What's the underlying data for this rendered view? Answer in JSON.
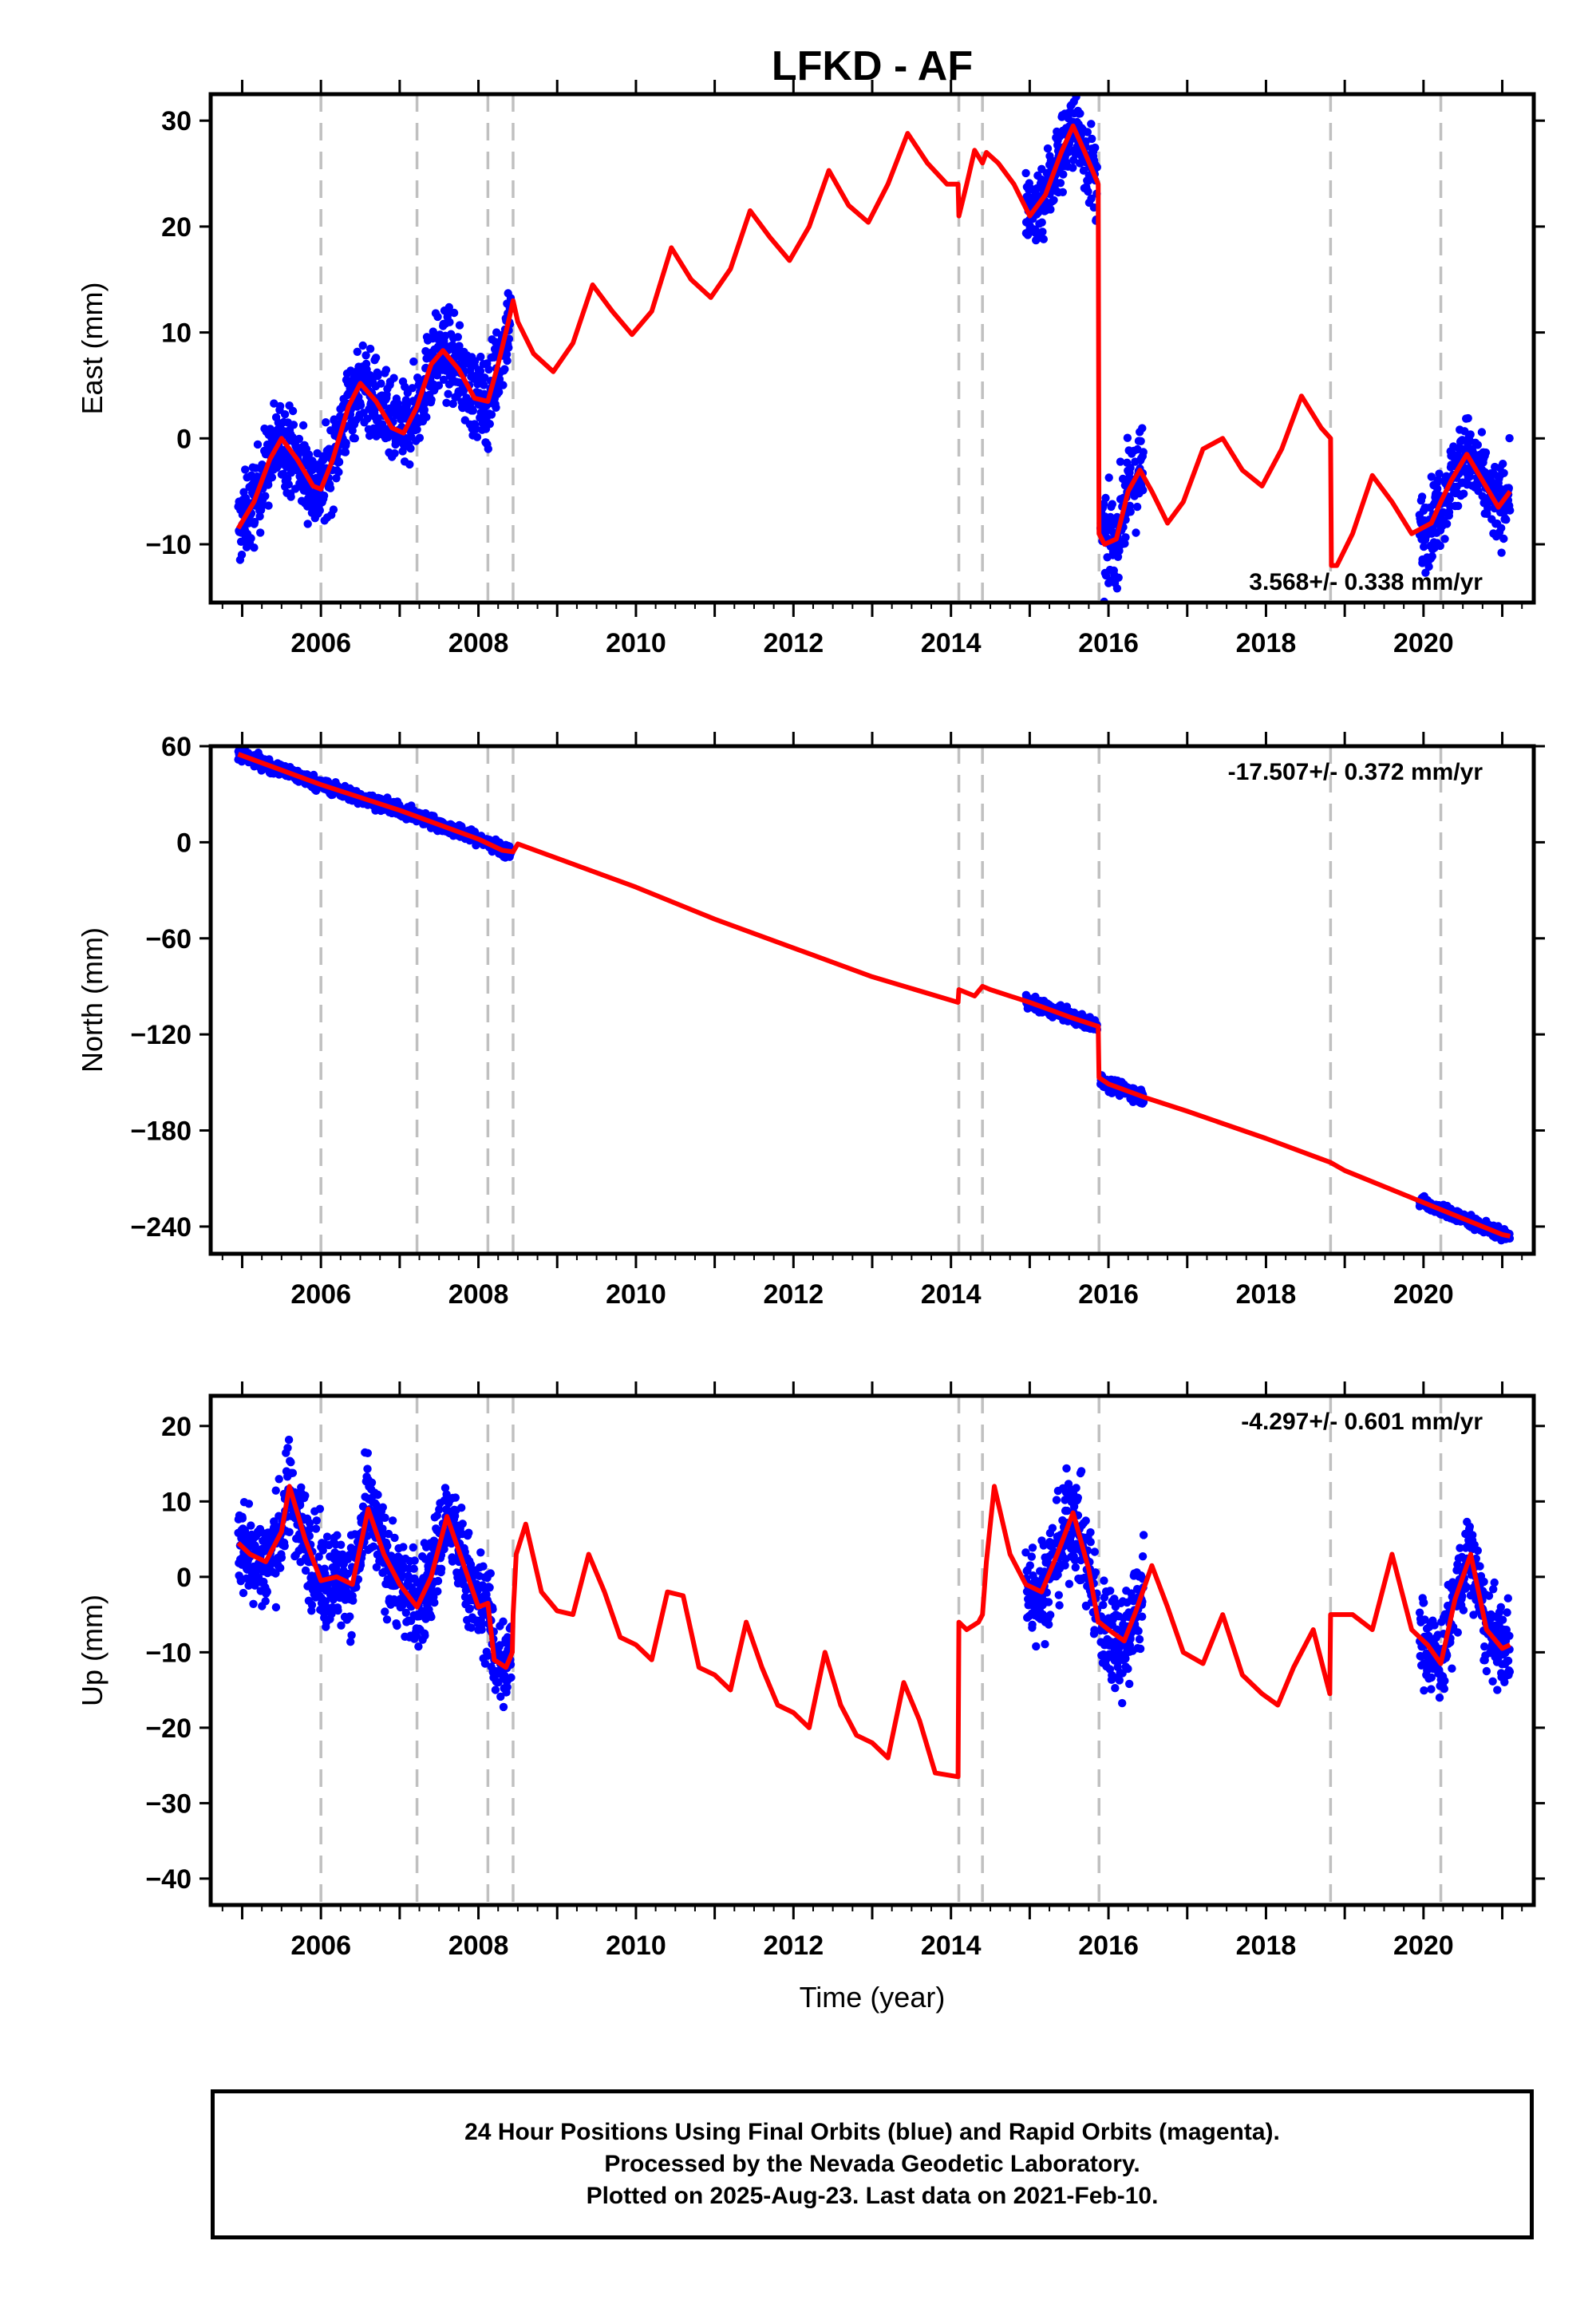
{
  "title": "LFKD - AF",
  "colors": {
    "data": "#0000ff",
    "model": "#ff0000",
    "event_line": "#c0c0c0",
    "frame": "#000000"
  },
  "chart_data": [
    {
      "type": "scatter",
      "name": "east",
      "ylabel": "East (mm)",
      "xlabel": "",
      "rate": "3.568+/- 0.338 mm/yr",
      "xlim": [
        2004.6,
        2021.4
      ],
      "ylim": [
        -15.5,
        32.5
      ],
      "yticks": [
        30,
        20,
        10,
        0,
        -10
      ],
      "ytick_labels": [
        "30",
        "20",
        "10",
        "0",
        "−10"
      ],
      "xticks": [
        2006,
        2008,
        2010,
        2012,
        2014,
        2016,
        2018,
        2020
      ],
      "xtick_labels": [
        "2006",
        "2008",
        "2010",
        "2012",
        "2014",
        "2016",
        "2018",
        "2020"
      ],
      "event_lines": [
        2006.0,
        2007.22,
        2008.12,
        2008.44,
        2014.1,
        2014.4,
        2015.88,
        2018.82,
        2020.22
      ],
      "model_x": [
        2004.95,
        2005.15,
        2005.35,
        2005.5,
        2005.7,
        2005.9,
        2006.0,
        2006.15,
        2006.35,
        2006.5,
        2006.7,
        2006.9,
        2007.05,
        2007.22,
        2007.4,
        2007.55,
        2007.75,
        2007.95,
        2008.12,
        2008.25,
        2008.38,
        2008.44,
        2008.5,
        2008.7,
        2008.95,
        2009.2,
        2009.45,
        2009.7,
        2009.95,
        2010.2,
        2010.45,
        2010.7,
        2010.95,
        2011.2,
        2011.45,
        2011.7,
        2011.95,
        2012.2,
        2012.45,
        2012.7,
        2012.95,
        2013.2,
        2013.45,
        2013.7,
        2013.95,
        2014.09,
        2014.1,
        2014.2,
        2014.3,
        2014.4,
        2014.45,
        2014.6,
        2014.8,
        2015.0,
        2015.2,
        2015.4,
        2015.55,
        2015.7,
        2015.87,
        2015.88,
        2015.95,
        2016.1,
        2016.25,
        2016.4,
        2016.55,
        2016.75,
        2016.95,
        2017.2,
        2017.45,
        2017.7,
        2017.95,
        2018.2,
        2018.45,
        2018.7,
        2018.82,
        2018.83,
        2018.9,
        2019.1,
        2019.35,
        2019.6,
        2019.85,
        2020.1,
        2020.22,
        2020.35,
        2020.55,
        2020.75,
        2020.95,
        2021.1
      ],
      "model_y": [
        -8.5,
        -6,
        -2,
        0,
        -2,
        -4.5,
        -4.8,
        -2,
        3,
        5.2,
        3.5,
        1,
        0.5,
        3,
        7,
        8.3,
        6.5,
        3.8,
        3.5,
        7,
        11,
        13,
        11,
        8,
        6.3,
        9,
        14.5,
        12,
        9.8,
        12,
        18,
        15,
        13.3,
        16,
        21.5,
        19,
        16.8,
        20,
        25.3,
        22,
        20.4,
        24,
        28.8,
        26,
        24,
        24,
        21,
        24,
        27.2,
        26,
        27,
        26,
        24,
        21,
        23,
        27,
        29.5,
        27,
        24,
        -9,
        -10,
        -9.5,
        -5,
        -3,
        -5,
        -8,
        -6,
        -1,
        0,
        -3,
        -4.5,
        -1,
        4,
        1,
        0,
        -12,
        -12,
        -9,
        -3.5,
        -6,
        -9,
        -8,
        -6,
        -4,
        -1.5,
        -4,
        -6.5,
        -5
      ],
      "obs_groups": [
        {
          "x_start": 2004.95,
          "x_end": 2008.42,
          "spread": 2.8
        },
        {
          "x_start": 2014.95,
          "x_end": 2015.86,
          "spread": 2.8
        },
        {
          "x_start": 2015.9,
          "x_end": 2016.45,
          "spread": 3.0
        },
        {
          "x_start": 2019.95,
          "x_end": 2021.1,
          "spread": 2.6
        }
      ]
    },
    {
      "type": "scatter",
      "name": "north",
      "ylabel": "North (mm)",
      "xlabel": "",
      "rate": "-17.507+/- 0.372 mm/yr",
      "xlim": [
        2004.6,
        2021.4
      ],
      "ylim": [
        -257,
        60
      ],
      "yticks": [
        60,
        0,
        -60,
        -120,
        -180,
        -240
      ],
      "ytick_labels": [
        "60",
        "0",
        "−60",
        "−120",
        "−180",
        "−240"
      ],
      "xticks": [
        2006,
        2008,
        2010,
        2012,
        2014,
        2016,
        2018,
        2020
      ],
      "xtick_labels": [
        "2006",
        "2008",
        "2010",
        "2012",
        "2014",
        "2016",
        "2018",
        "2020"
      ],
      "event_lines": [
        2006.0,
        2007.22,
        2008.12,
        2008.44,
        2014.1,
        2014.4,
        2015.88,
        2018.82,
        2020.22
      ],
      "model_x": [
        2004.95,
        2006.0,
        2007.0,
        2008.0,
        2008.3,
        2008.44,
        2008.5,
        2009.0,
        2010.0,
        2011.0,
        2012.0,
        2013.0,
        2014.09,
        2014.1,
        2014.3,
        2014.4,
        2014.5,
        2015.0,
        2015.5,
        2015.87,
        2015.88,
        2016.0,
        2016.5,
        2017.0,
        2018.0,
        2018.82,
        2019.0,
        2020.0,
        2021.0,
        2021.1
      ],
      "model_y": [
        55,
        36,
        20,
        2,
        -5,
        -6,
        -1,
        -10,
        -28,
        -48,
        -66,
        -84,
        -100,
        -92,
        -96,
        -90,
        -92,
        -100,
        -109,
        -115,
        -147,
        -151,
        -160,
        -168,
        -185,
        -200,
        -205,
        -225,
        -245,
        -246
      ],
      "obs_groups": [
        {
          "x_start": 2004.95,
          "x_end": 2008.42,
          "spread": 2.8
        },
        {
          "x_start": 2014.95,
          "x_end": 2015.86,
          "spread": 2.8
        },
        {
          "x_start": 2015.9,
          "x_end": 2016.45,
          "spread": 3.0
        },
        {
          "x_start": 2019.95,
          "x_end": 2021.1,
          "spread": 2.6
        }
      ]
    },
    {
      "type": "scatter",
      "name": "up",
      "ylabel": "Up (mm)",
      "xlabel": "Time (year)",
      "rate": "-4.297+/- 0.601 mm/yr",
      "xlim": [
        2004.6,
        2021.4
      ],
      "ylim": [
        -43.5,
        24
      ],
      "yticks": [
        20,
        10,
        0,
        -10,
        -20,
        -30,
        -40
      ],
      "ytick_labels": [
        "20",
        "10",
        "0",
        "−10",
        "−20",
        "−30",
        "−40"
      ],
      "xticks": [
        2006,
        2008,
        2010,
        2012,
        2014,
        2016,
        2018,
        2020
      ],
      "xtick_labels": [
        "2006",
        "2008",
        "2010",
        "2012",
        "2014",
        "2016",
        "2018",
        "2020"
      ],
      "event_lines": [
        2006.0,
        2007.22,
        2008.12,
        2008.44,
        2014.1,
        2014.4,
        2015.88,
        2018.82,
        2020.22
      ],
      "model_x": [
        2004.95,
        2005.1,
        2005.3,
        2005.5,
        2005.6,
        2005.8,
        2006.0,
        2006.2,
        2006.4,
        2006.6,
        2006.8,
        2007.0,
        2007.22,
        2007.4,
        2007.6,
        2007.8,
        2008.0,
        2008.12,
        2008.2,
        2008.35,
        2008.43,
        2008.44,
        2008.48,
        2008.6,
        2008.8,
        2009.0,
        2009.2,
        2009.4,
        2009.6,
        2009.8,
        2010.0,
        2010.2,
        2010.4,
        2010.6,
        2010.8,
        2011.0,
        2011.2,
        2011.4,
        2011.6,
        2011.8,
        2012.0,
        2012.2,
        2012.4,
        2012.6,
        2012.8,
        2013.0,
        2013.2,
        2013.4,
        2013.6,
        2013.8,
        2014.09,
        2014.1,
        2014.2,
        2014.35,
        2014.4,
        2014.45,
        2014.55,
        2014.75,
        2014.95,
        2015.15,
        2015.35,
        2015.55,
        2015.75,
        2015.87,
        2015.88,
        2016.0,
        2016.2,
        2016.35,
        2016.55,
        2016.75,
        2016.95,
        2017.2,
        2017.45,
        2017.7,
        2017.95,
        2018.15,
        2018.35,
        2018.6,
        2018.81,
        2018.82,
        2018.9,
        2019.1,
        2019.35,
        2019.6,
        2019.85,
        2020.05,
        2020.22,
        2020.4,
        2020.6,
        2020.8,
        2021.0,
        2021.1
      ],
      "model_y": [
        4.5,
        3,
        2,
        6,
        12,
        5,
        -0.5,
        0,
        -1,
        9,
        3,
        -1,
        -4,
        0,
        8,
        2,
        -4,
        -3.5,
        -11,
        -12,
        -10,
        -5,
        3,
        7,
        -2,
        -4.5,
        -5,
        3,
        -2,
        -8,
        -9,
        -11,
        -2,
        -2.5,
        -12,
        -13,
        -15,
        -6,
        -12,
        -17,
        -18,
        -20,
        -10,
        -17,
        -21,
        -22,
        -24,
        -14,
        -19,
        -26,
        -26.5,
        -6,
        -7,
        -6,
        -5,
        2,
        12,
        3,
        -1,
        -2,
        3,
        8.5,
        1,
        -6,
        -6,
        -7,
        -8.5,
        -4.5,
        1.5,
        -4,
        -10,
        -11.5,
        -5,
        -13,
        -15.5,
        -17,
        -12,
        -7,
        -15.5,
        -5,
        -5,
        -5,
        -7,
        3,
        -7,
        -9,
        -11.5,
        -3,
        3,
        -7,
        -9.5,
        -9
      ],
      "obs_groups": [
        {
          "x_start": 2004.95,
          "x_end": 2008.42,
          "spread": 4.5
        },
        {
          "x_start": 2014.95,
          "x_end": 2015.86,
          "spread": 4.8
        },
        {
          "x_start": 2015.9,
          "x_end": 2016.45,
          "spread": 5.0
        },
        {
          "x_start": 2019.95,
          "x_end": 2021.1,
          "spread": 4.0
        }
      ]
    }
  ],
  "footer": {
    "line1": "24 Hour Positions Using Final Orbits (blue) and Rapid Orbits (magenta).",
    "line2": "Processed by the Nevada Geodetic Laboratory.",
    "line3": "Plotted on 2025-Aug-23. Last data on 2021-Feb-10."
  }
}
